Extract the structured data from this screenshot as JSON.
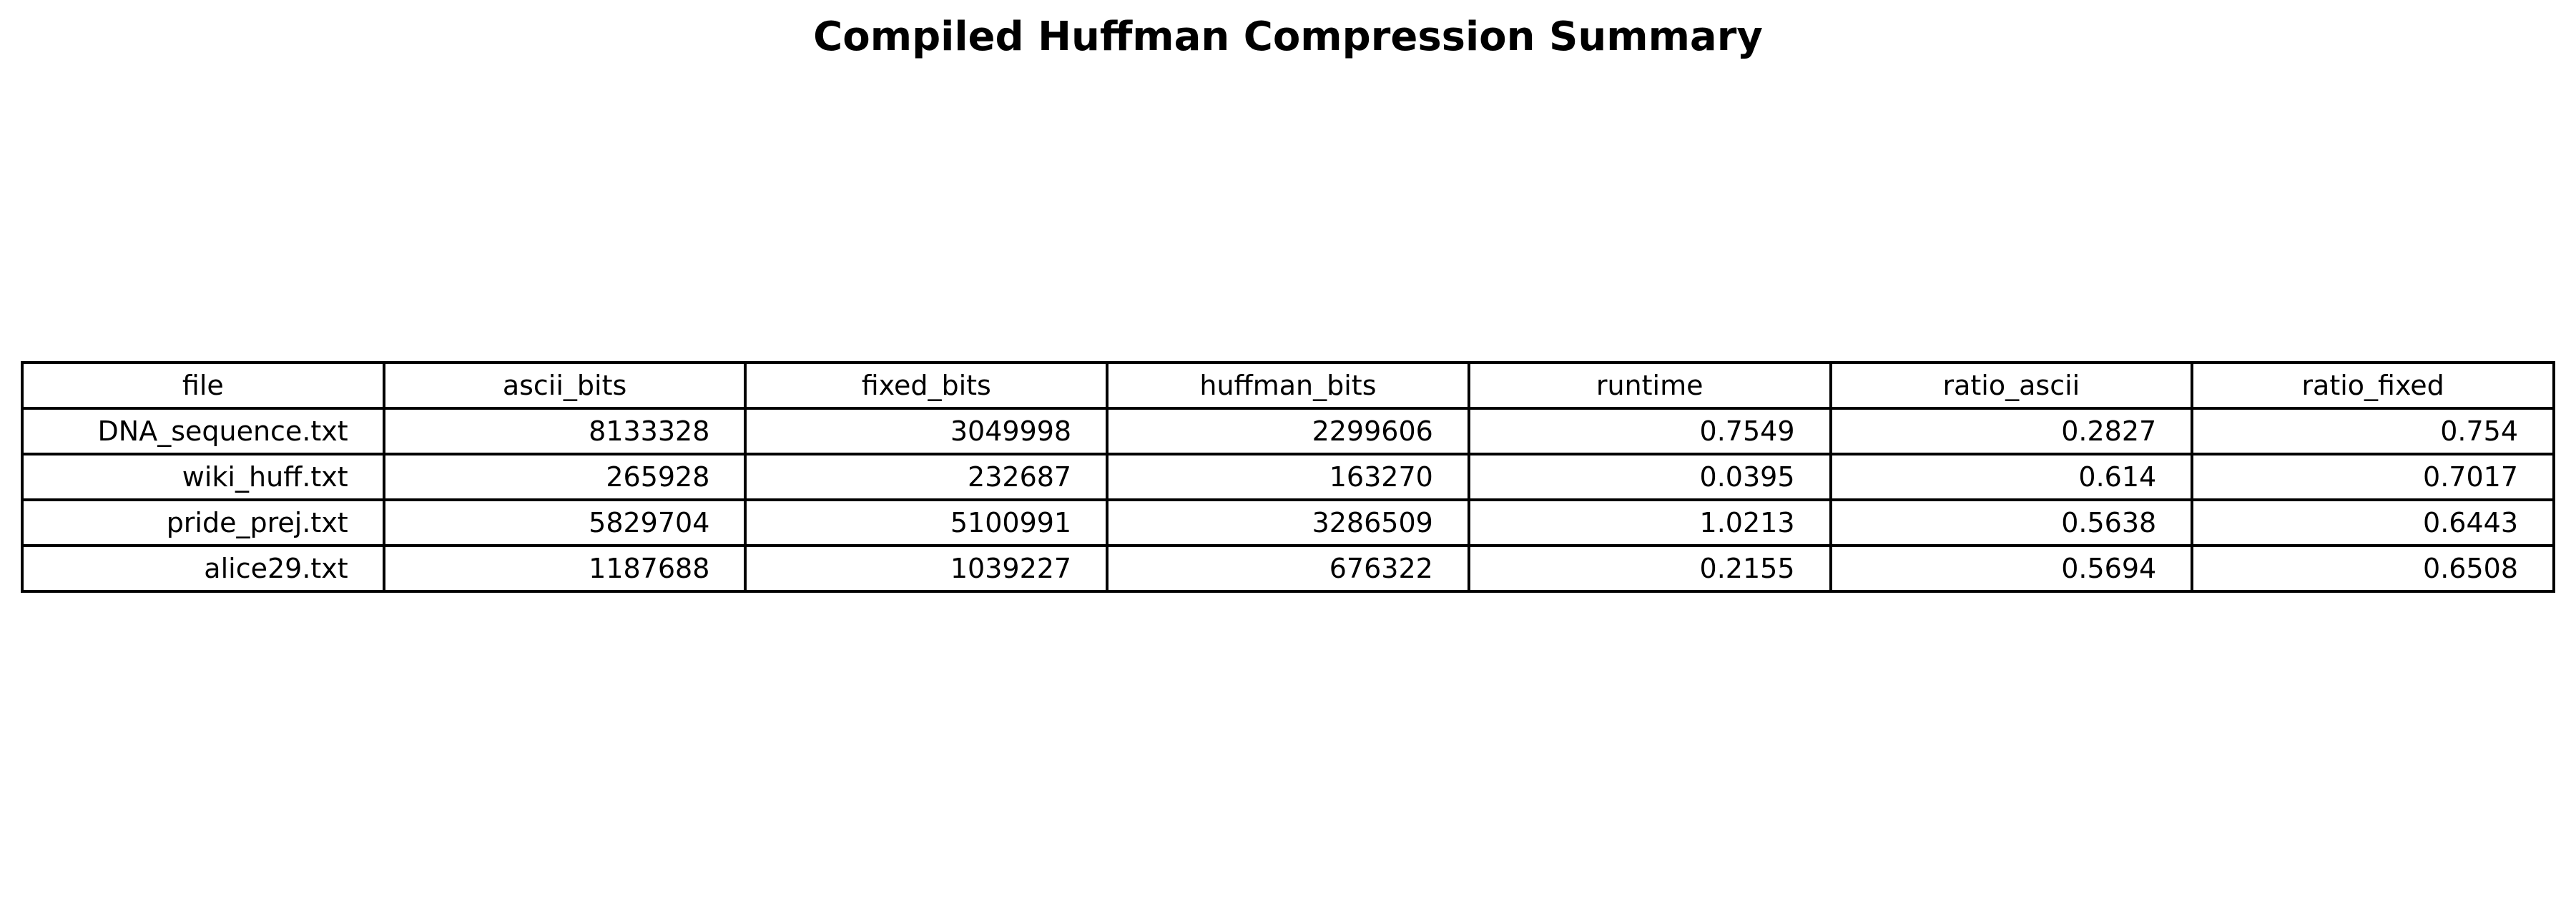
{
  "title": "Compiled Huffman Compression Summary",
  "chart_data": {
    "type": "table",
    "title": "Compiled Huffman Compression Summary",
    "columns": [
      "file",
      "ascii_bits",
      "fixed_bits",
      "huffman_bits",
      "runtime",
      "ratio_ascii",
      "ratio_fixed"
    ],
    "rows": [
      [
        "DNA_sequence.txt",
        "8133328",
        "3049998",
        "2299606",
        "0.7549",
        "0.2827",
        "0.754"
      ],
      [
        "wiki_huff.txt",
        "265928",
        "232687",
        "163270",
        "0.0395",
        "0.614",
        "0.7017"
      ],
      [
        "pride_prej.txt",
        "5829704",
        "5100991",
        "3286509",
        "1.0213",
        "0.5638",
        "0.6443"
      ],
      [
        "alice29.txt",
        "1187688",
        "1039227",
        "676322",
        "0.2155",
        "0.5694",
        "0.6508"
      ]
    ]
  }
}
